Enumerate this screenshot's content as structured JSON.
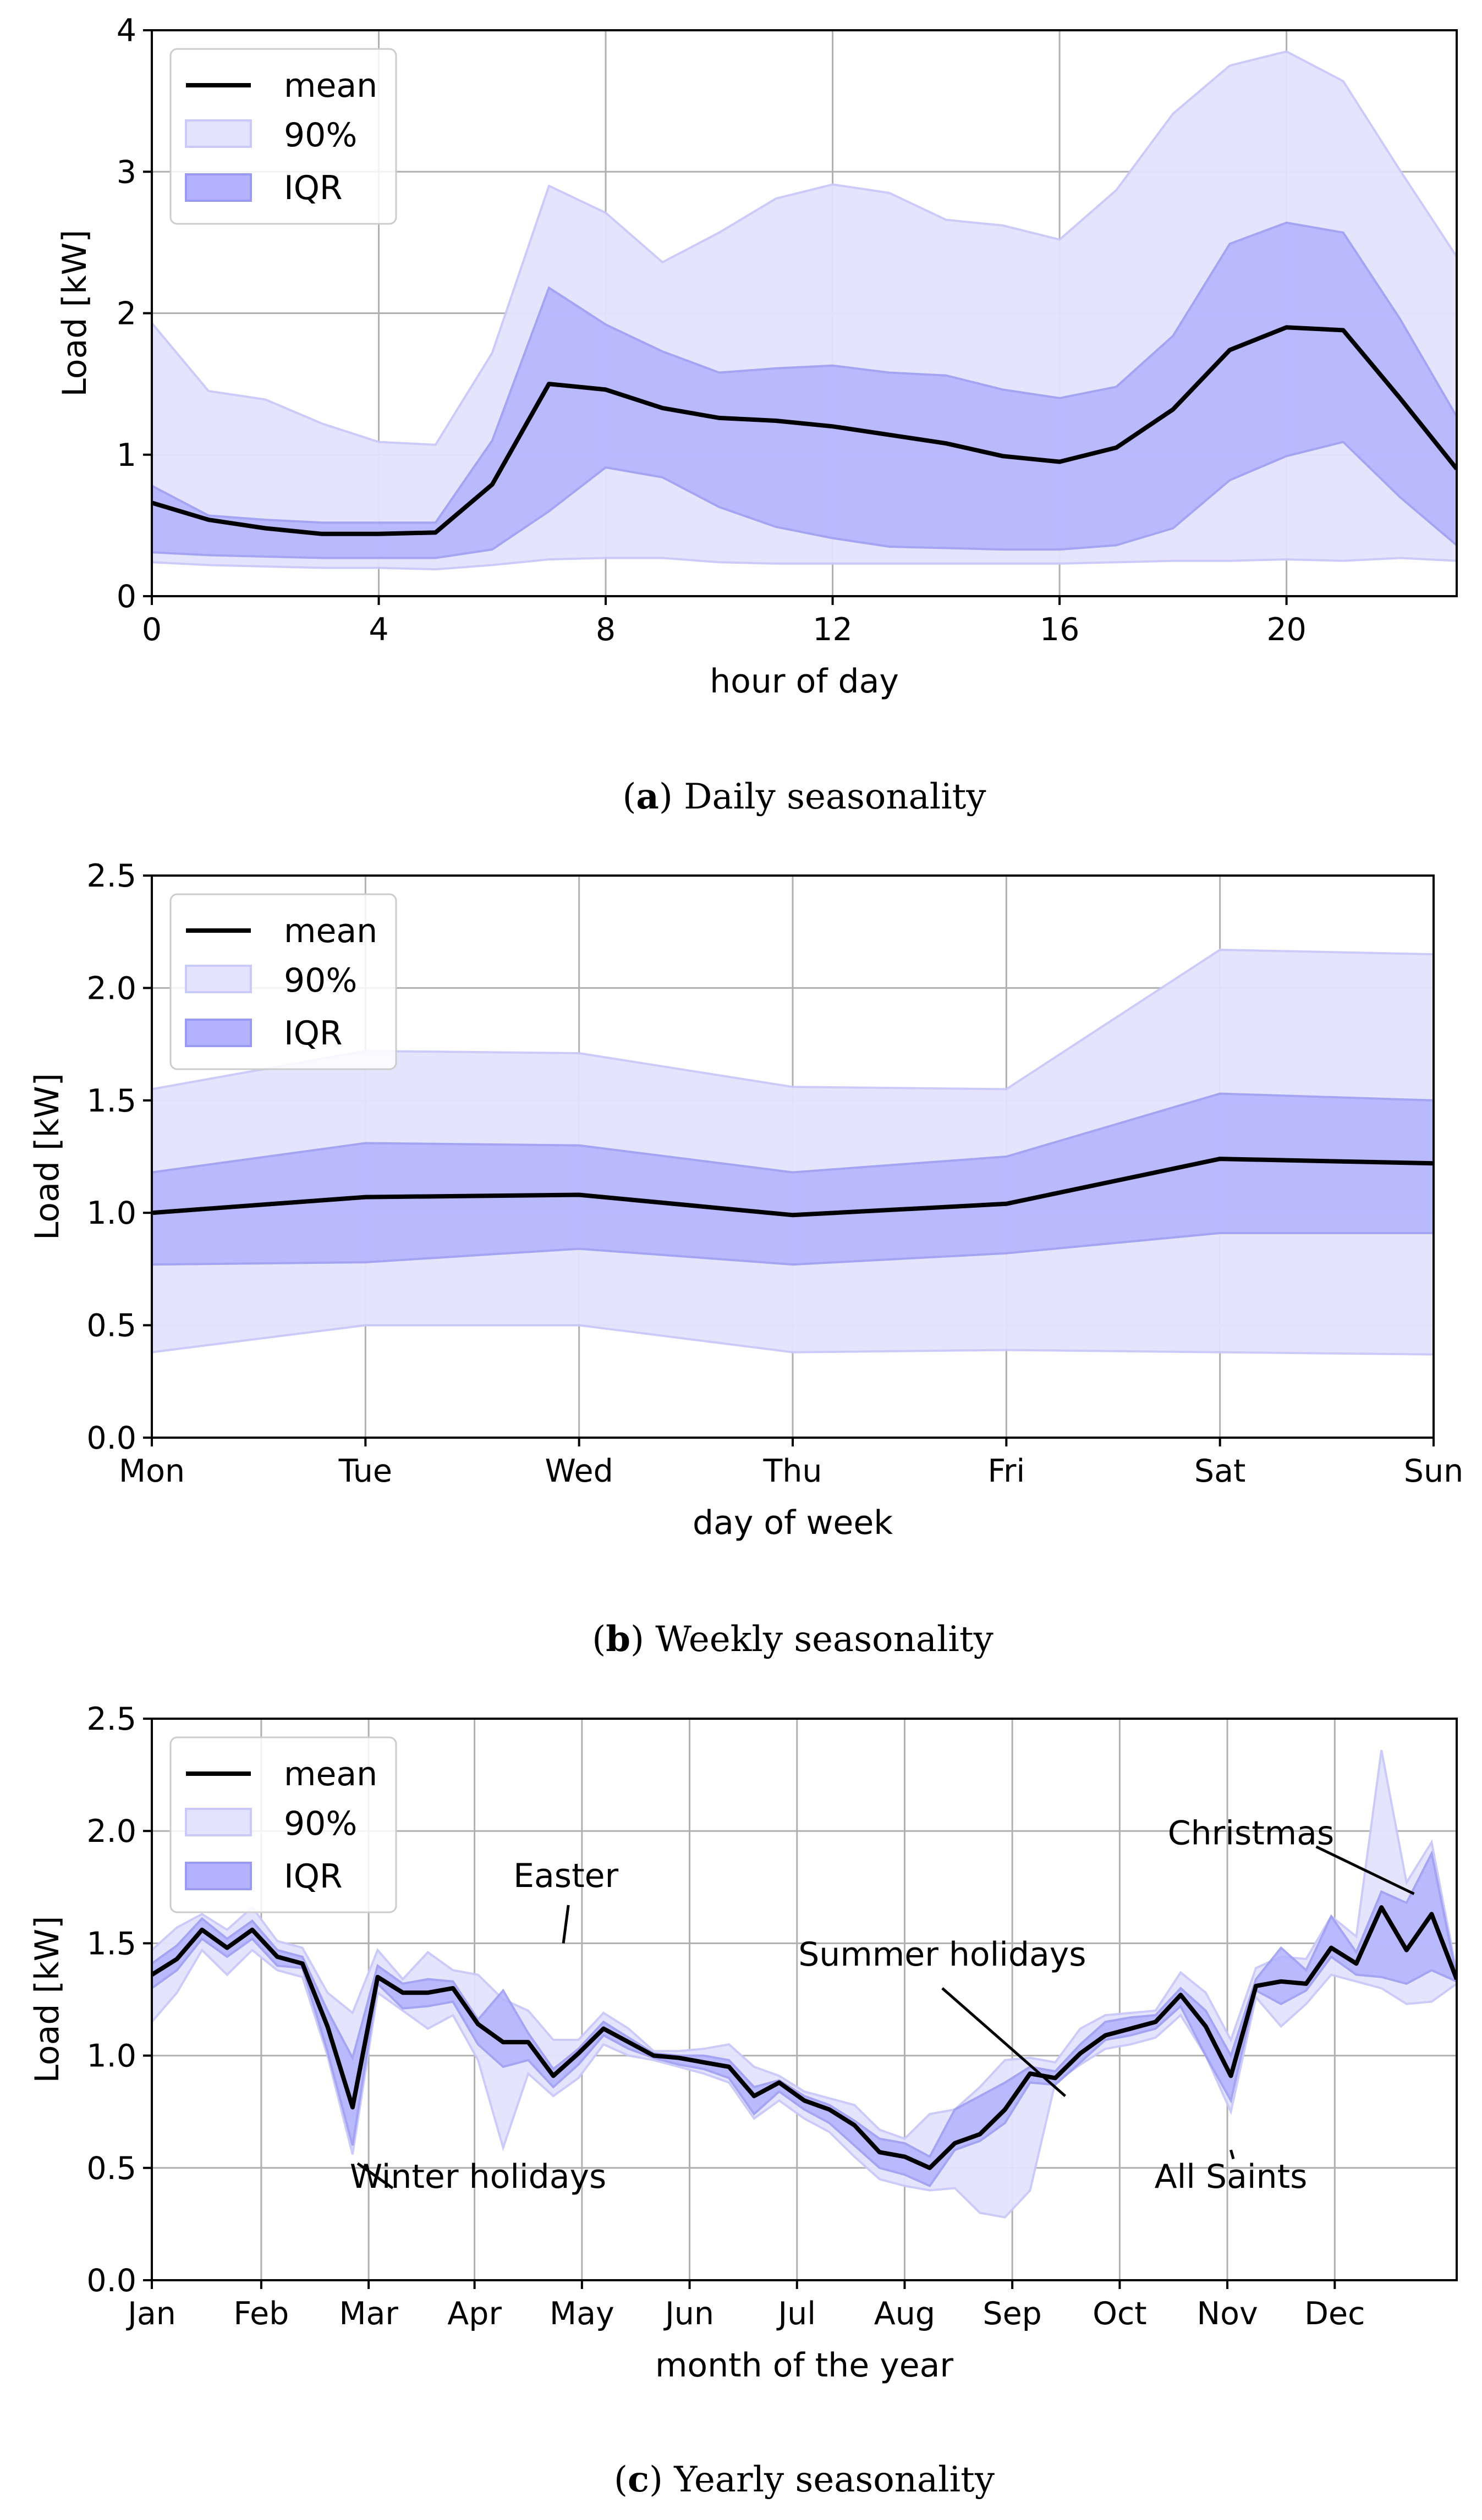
{
  "colors": {
    "mean": "#000000",
    "band90": "#e3e3fd",
    "band90_edge": "#c9c9fa",
    "bandIQR": "#b2b2ff",
    "bandIQR_edge": "#9a9af2",
    "grid": "#b0b0b0"
  },
  "chart_data": [
    {
      "id": "a",
      "type": "area",
      "xlabel": "hour of day",
      "ylabel": "Load [kW]",
      "xlim": [
        0,
        23
      ],
      "ylim": [
        0,
        4
      ],
      "xticks": [
        0,
        4,
        8,
        12,
        16,
        20
      ],
      "xtick_labels": [
        "0",
        "4",
        "8",
        "12",
        "16",
        "20"
      ],
      "yticks": [
        0,
        1,
        2,
        3,
        4
      ],
      "ytick_labels": [
        "0",
        "1",
        "2",
        "3",
        "4"
      ],
      "legend": [
        "mean",
        "90%",
        "IQR"
      ],
      "legend_position": "top-left",
      "caption_letter": "a",
      "caption_text": "Daily seasonality",
      "x": [
        0,
        1,
        2,
        3,
        4,
        5,
        6,
        7,
        8,
        9,
        10,
        11,
        12,
        13,
        14,
        15,
        16,
        17,
        18,
        19,
        20,
        21,
        22,
        23
      ],
      "mean": [
        0.66,
        0.54,
        0.48,
        0.44,
        0.44,
        0.45,
        0.79,
        1.5,
        1.46,
        1.33,
        1.26,
        1.24,
        1.2,
        1.14,
        1.08,
        0.99,
        0.95,
        1.05,
        1.32,
        1.74,
        1.9,
        1.88,
        1.4,
        0.9
      ],
      "q05": [
        0.24,
        0.22,
        0.21,
        0.2,
        0.2,
        0.19,
        0.22,
        0.26,
        0.27,
        0.27,
        0.24,
        0.23,
        0.23,
        0.23,
        0.23,
        0.23,
        0.23,
        0.24,
        0.25,
        0.25,
        0.26,
        0.25,
        0.27,
        0.25
      ],
      "q95": [
        1.93,
        1.45,
        1.39,
        1.22,
        1.09,
        1.07,
        1.72,
        2.9,
        2.71,
        2.36,
        2.57,
        2.81,
        2.91,
        2.85,
        2.66,
        2.62,
        2.52,
        2.87,
        3.41,
        3.75,
        3.85,
        3.64,
        3.01,
        2.4
      ],
      "q25": [
        0.31,
        0.29,
        0.28,
        0.27,
        0.27,
        0.27,
        0.33,
        0.6,
        0.91,
        0.84,
        0.63,
        0.49,
        0.41,
        0.35,
        0.34,
        0.33,
        0.33,
        0.36,
        0.48,
        0.82,
        0.99,
        1.09,
        0.7,
        0.36
      ],
      "q75": [
        0.78,
        0.57,
        0.54,
        0.52,
        0.52,
        0.52,
        1.1,
        2.18,
        1.92,
        1.73,
        1.58,
        1.61,
        1.63,
        1.58,
        1.56,
        1.46,
        1.4,
        1.48,
        1.84,
        2.49,
        2.64,
        2.57,
        1.96,
        1.27
      ],
      "annotations": []
    },
    {
      "id": "b",
      "type": "area",
      "xlabel": "day of week",
      "ylabel": "Load [kW]",
      "xlim": [
        0,
        6
      ],
      "ylim": [
        0,
        2.5
      ],
      "xticks": [
        0,
        1,
        2,
        3,
        4,
        5,
        6
      ],
      "xtick_labels": [
        "Mon",
        "Tue",
        "Wed",
        "Thu",
        "Fri",
        "Sat",
        "Sun"
      ],
      "yticks": [
        0,
        0.5,
        1.0,
        1.5,
        2.0,
        2.5
      ],
      "ytick_labels": [
        "0.0",
        "0.5",
        "1.0",
        "1.5",
        "2.0",
        "2.5"
      ],
      "legend": [
        "mean",
        "90%",
        "IQR"
      ],
      "legend_position": "top-left",
      "caption_letter": "b",
      "caption_text": "Weekly seasonality",
      "x": [
        0,
        1,
        2,
        3,
        4,
        5,
        6
      ],
      "mean": [
        1.0,
        1.07,
        1.08,
        0.99,
        1.04,
        1.24,
        1.22
      ],
      "q05": [
        0.38,
        0.5,
        0.5,
        0.38,
        0.39,
        0.38,
        0.37
      ],
      "q95": [
        1.55,
        1.72,
        1.71,
        1.56,
        1.55,
        2.17,
        2.15
      ],
      "q25": [
        0.77,
        0.78,
        0.84,
        0.77,
        0.82,
        0.91,
        0.91
      ],
      "q75": [
        1.18,
        1.31,
        1.3,
        1.18,
        1.25,
        1.53,
        1.5
      ],
      "annotations": []
    },
    {
      "id": "c",
      "type": "area",
      "xlabel": "month of the year",
      "ylabel": "Load [kW]",
      "xlim": [
        0,
        52
      ],
      "ylim": [
        0,
        2.5
      ],
      "xticks": [
        0,
        4.36,
        8.64,
        12.86,
        17.14,
        21.43,
        25.71,
        30.0,
        34.29,
        38.57,
        42.86,
        47.14
      ],
      "xtick_labels": [
        "Jan",
        "Feb",
        "Mar",
        "Apr",
        "May",
        "Jun",
        "Jul",
        "Aug",
        "Sep",
        "Oct",
        "Nov",
        "Dec"
      ],
      "yticks": [
        0,
        0.5,
        1.0,
        1.5,
        2.0,
        2.5
      ],
      "ytick_labels": [
        "0.0",
        "0.5",
        "1.0",
        "1.5",
        "2.0",
        "2.5"
      ],
      "legend": [
        "mean",
        "90%",
        "IQR"
      ],
      "legend_position": "top-left",
      "caption_letter": "c",
      "caption_text": "Yearly seasonality",
      "x": [
        0,
        1,
        2,
        3,
        4,
        5,
        6,
        7,
        8,
        9,
        10,
        11,
        12,
        13,
        14,
        15,
        16,
        17,
        18,
        19,
        20,
        21,
        22,
        23,
        24,
        25,
        26,
        27,
        28,
        29,
        30,
        31,
        32,
        33,
        34,
        35,
        36,
        37,
        38,
        39,
        40,
        41,
        42,
        43,
        44,
        45,
        46,
        47,
        48,
        49,
        50,
        51,
        52
      ],
      "mean": [
        1.36,
        1.43,
        1.56,
        1.48,
        1.56,
        1.44,
        1.41,
        1.13,
        0.77,
        1.35,
        1.28,
        1.28,
        1.3,
        1.14,
        1.06,
        1.06,
        0.91,
        1.01,
        1.12,
        1.06,
        1.0,
        0.99,
        0.97,
        0.95,
        0.82,
        0.88,
        0.8,
        0.76,
        0.69,
        0.57,
        0.55,
        0.5,
        0.61,
        0.65,
        0.76,
        0.92,
        0.9,
        1.01,
        1.09,
        1.12,
        1.15,
        1.27,
        1.13,
        0.91,
        1.31,
        1.33,
        1.32,
        1.48,
        1.41,
        1.66,
        1.47,
        1.63,
        1.34
      ],
      "q05": [
        1.15,
        1.28,
        1.47,
        1.36,
        1.47,
        1.38,
        1.35,
        1.0,
        0.56,
        1.28,
        1.2,
        1.12,
        1.18,
        0.98,
        0.59,
        0.92,
        0.82,
        0.9,
        1.05,
        1.0,
        0.98,
        0.95,
        0.92,
        0.88,
        0.72,
        0.8,
        0.72,
        0.66,
        0.55,
        0.45,
        0.42,
        0.4,
        0.41,
        0.3,
        0.28,
        0.4,
        0.88,
        0.96,
        1.03,
        1.05,
        1.08,
        1.18,
        1.0,
        0.75,
        1.26,
        1.13,
        1.23,
        1.36,
        1.33,
        1.3,
        1.23,
        1.24,
        1.32
      ],
      "q95": [
        1.47,
        1.57,
        1.63,
        1.56,
        1.66,
        1.51,
        1.48,
        1.28,
        1.19,
        1.47,
        1.34,
        1.46,
        1.38,
        1.36,
        1.25,
        1.2,
        1.07,
        1.07,
        1.19,
        1.12,
        1.02,
        1.02,
        1.03,
        1.05,
        0.95,
        0.91,
        0.84,
        0.81,
        0.78,
        0.67,
        0.63,
        0.74,
        0.76,
        0.86,
        0.98,
        0.99,
        0.97,
        1.12,
        1.18,
        1.19,
        1.2,
        1.37,
        1.28,
        1.07,
        1.39,
        1.44,
        1.43,
        1.62,
        1.53,
        2.36,
        1.77,
        1.95,
        1.37
      ],
      "q25": [
        1.3,
        1.38,
        1.52,
        1.44,
        1.52,
        1.4,
        1.39,
        1.02,
        0.6,
        1.32,
        1.21,
        1.22,
        1.24,
        1.05,
        0.95,
        0.98,
        0.86,
        0.96,
        1.09,
        1.03,
        0.99,
        0.96,
        0.94,
        0.9,
        0.74,
        0.84,
        0.76,
        0.7,
        0.6,
        0.5,
        0.47,
        0.42,
        0.58,
        0.62,
        0.7,
        0.88,
        0.87,
        0.97,
        1.07,
        1.09,
        1.12,
        1.22,
        1.0,
        0.8,
        1.29,
        1.23,
        1.29,
        1.44,
        1.36,
        1.35,
        1.32,
        1.38,
        1.33
      ],
      "q75": [
        1.41,
        1.49,
        1.61,
        1.52,
        1.6,
        1.47,
        1.44,
        1.2,
        0.99,
        1.4,
        1.32,
        1.34,
        1.33,
        1.16,
        1.29,
        1.1,
        0.94,
        1.03,
        1.15,
        1.08,
        1.01,
        1.0,
        1.0,
        0.98,
        0.86,
        0.89,
        0.82,
        0.78,
        0.71,
        0.63,
        0.61,
        0.55,
        0.76,
        0.82,
        0.88,
        0.95,
        0.93,
        1.05,
        1.15,
        1.17,
        1.18,
        1.3,
        1.2,
        1.0,
        1.34,
        1.48,
        1.38,
        1.62,
        1.46,
        1.73,
        1.68,
        1.9,
        1.35
      ],
      "annotations": [
        {
          "text": "Easter",
          "text_x": 16.5,
          "text_y": 1.8,
          "line": [
            [
              16.6,
              1.67
            ],
            [
              16.4,
              1.5
            ]
          ]
        },
        {
          "text": "Winter holidays",
          "text_x": 13.0,
          "text_y": 0.46,
          "line": [
            [
              9.6,
              0.41
            ],
            [
              8.2,
              0.52
            ]
          ]
        },
        {
          "text": "Summer holidays",
          "text_x": 31.5,
          "text_y": 1.45,
          "line": [
            [
              31.5,
              1.3
            ],
            [
              36.4,
              0.82
            ]
          ]
        },
        {
          "text": "All Saints",
          "text_x": 43.0,
          "text_y": 0.46,
          "line": [
            [
              43.1,
              0.54
            ],
            [
              43.0,
              0.58
            ]
          ]
        },
        {
          "text": "Christmas",
          "text_x": 43.8,
          "text_y": 1.99,
          "line": [
            [
              46.4,
              1.93
            ],
            [
              50.3,
              1.72
            ]
          ]
        }
      ]
    }
  ]
}
